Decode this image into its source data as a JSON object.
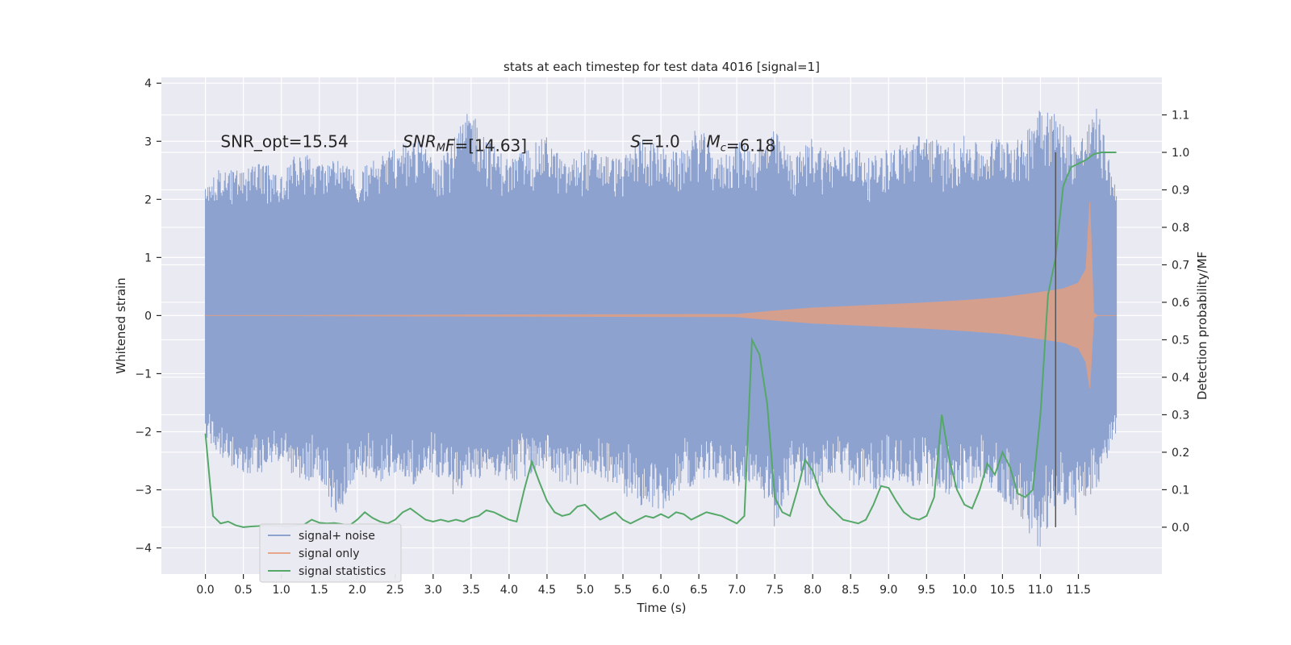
{
  "chart_data": {
    "type": "line",
    "title": "stats at each timestep for test data 4016 [signal=1]",
    "xlabel": "Time (s)",
    "ylabel": "Whitened strain",
    "y2label": "Detection probability/MF",
    "xlim": [
      -0.58,
      12.6
    ],
    "ylim": [
      -4.45,
      4.1
    ],
    "y2lim": [
      -0.125,
      1.2
    ],
    "xticks": [
      0.0,
      0.5,
      1.0,
      1.5,
      2.0,
      2.5,
      3.0,
      3.5,
      4.0,
      4.5,
      5.0,
      5.5,
      6.0,
      6.5,
      7.0,
      7.5,
      8.0,
      8.5,
      9.0,
      9.5,
      10.0,
      10.5,
      11.0,
      11.5
    ],
    "xtick_labels": [
      "0.0",
      "0.5",
      "1.0",
      "1.5",
      "2.0",
      "2.5",
      "3.0",
      "3.5",
      "4.0",
      "4.5",
      "5.0",
      "5.5",
      "6.0",
      "6.5",
      "7.0",
      "7.5",
      "8.0",
      "8.5",
      "9.0",
      "9.5",
      "10.0",
      "10.5",
      "11.0",
      "11.5"
    ],
    "yticks": [
      -4,
      -3,
      -2,
      -1,
      0,
      1,
      2,
      3,
      4
    ],
    "ytick_labels": [
      "−4",
      "−3",
      "−2",
      "−1",
      "0",
      "1",
      "2",
      "3",
      "4"
    ],
    "y2ticks": [
      0.0,
      0.1,
      0.2,
      0.3,
      0.4,
      0.5,
      0.6,
      0.7,
      0.8,
      0.9,
      1.0,
      1.1
    ],
    "y2tick_labels": [
      "0.0",
      "0.1",
      "0.2",
      "0.3",
      "0.4",
      "0.5",
      "0.6",
      "0.7",
      "0.8",
      "0.9",
      "1.0",
      "1.1"
    ],
    "grid": true,
    "legend_position": "lower-left",
    "annotations": [
      {
        "parts": [
          {
            "t": "SNR_opt=15.54",
            "it": false
          }
        ],
        "x": 0.2,
        "y": 3.0
      },
      {
        "parts": [
          {
            "t": "SNR",
            "it": true
          },
          {
            "t": "M",
            "it": true,
            "sub": true
          },
          {
            "t": "F",
            "it": true
          },
          {
            "t": "=[14.63]",
            "it": false
          }
        ],
        "x": 2.6,
        "y": 3.0
      },
      {
        "parts": [
          {
            "t": "S",
            "it": true
          },
          {
            "t": "=1.0",
            "it": false
          }
        ],
        "x": 5.6,
        "y": 3.0
      },
      {
        "parts": [
          {
            "t": "M",
            "it": true
          },
          {
            "t": "c",
            "it": true,
            "sub": true
          },
          {
            "t": "=6.18",
            "it": false
          }
        ],
        "x": 6.6,
        "y": 3.0
      }
    ],
    "vline": {
      "x": 11.2,
      "y2_range": [
        0.0,
        1.0
      ],
      "color": "#555555"
    },
    "series": [
      {
        "name": "signal+ noise",
        "axis": "left",
        "color": "#8da2cf",
        "kind": "envelope",
        "x": [
          0.0,
          0.25,
          0.5,
          0.75,
          1.0,
          1.25,
          1.5,
          1.75,
          2.0,
          2.25,
          2.5,
          2.75,
          3.0,
          3.25,
          3.5,
          3.75,
          4.0,
          4.25,
          4.5,
          4.75,
          5.0,
          5.25,
          5.5,
          5.75,
          6.0,
          6.25,
          6.5,
          6.75,
          7.0,
          7.25,
          7.5,
          7.75,
          8.0,
          8.25,
          8.5,
          8.75,
          9.0,
          9.25,
          9.5,
          9.75,
          10.0,
          10.25,
          10.5,
          10.75,
          11.0,
          11.25,
          11.5,
          11.75,
          12.0
        ],
        "upper": [
          2.3,
          2.6,
          2.5,
          2.7,
          2.4,
          2.9,
          2.6,
          2.8,
          2.5,
          2.7,
          2.9,
          3.1,
          2.8,
          3.0,
          3.6,
          3.0,
          2.7,
          2.9,
          3.1,
          2.6,
          2.9,
          2.8,
          2.7,
          3.1,
          2.9,
          2.8,
          3.3,
          2.7,
          3.0,
          2.9,
          3.2,
          2.7,
          3.1,
          2.8,
          3.0,
          2.7,
          2.9,
          3.0,
          3.2,
          2.9,
          3.1,
          2.9,
          3.2,
          3.0,
          3.8,
          3.4,
          3.0,
          3.6,
          2.2
        ],
        "lower": [
          -2.1,
          -2.5,
          -2.8,
          -2.7,
          -2.5,
          -3.0,
          -2.8,
          -3.6,
          -2.7,
          -2.9,
          -2.8,
          -3.0,
          -2.7,
          -3.1,
          -2.9,
          -2.7,
          -2.9,
          -2.8,
          -2.6,
          -3.0,
          -2.9,
          -2.8,
          -3.1,
          -3.3,
          -3.4,
          -3.0,
          -2.9,
          -2.8,
          -3.0,
          -2.8,
          -3.7,
          -2.9,
          -3.0,
          -2.8,
          -2.9,
          -3.1,
          -2.8,
          -3.0,
          -2.9,
          -3.1,
          -3.0,
          -2.8,
          -3.2,
          -3.5,
          -4.1,
          -3.2,
          -3.5,
          -3.0,
          -2.0
        ]
      },
      {
        "name": "signal only",
        "axis": "left",
        "color": "#dd9f88",
        "kind": "envelope",
        "x": [
          0.0,
          7.0,
          7.5,
          8.0,
          8.5,
          9.0,
          9.5,
          10.0,
          10.5,
          11.0,
          11.3,
          11.5,
          11.6,
          11.65,
          11.7,
          11.75,
          12.0
        ],
        "upper": [
          0.0,
          0.02,
          0.08,
          0.13,
          0.16,
          0.19,
          0.22,
          0.26,
          0.31,
          0.4,
          0.46,
          0.56,
          0.8,
          1.95,
          0.05,
          0.0,
          0.0
        ],
        "lower": [
          0.0,
          -0.02,
          -0.08,
          -0.13,
          -0.16,
          -0.19,
          -0.22,
          -0.26,
          -0.31,
          -0.4,
          -0.46,
          -0.56,
          -0.8,
          -1.25,
          -0.05,
          0.0,
          0.0
        ]
      },
      {
        "name": "signal statistics",
        "axis": "right",
        "color": "#55a868",
        "kind": "line",
        "x": [
          0.0,
          0.1,
          0.2,
          0.3,
          0.4,
          0.5,
          0.6,
          0.7,
          0.8,
          0.9,
          1.0,
          1.1,
          1.2,
          1.3,
          1.4,
          1.5,
          1.6,
          1.7,
          1.8,
          1.9,
          2.0,
          2.1,
          2.2,
          2.3,
          2.4,
          2.5,
          2.6,
          2.7,
          2.8,
          2.9,
          3.0,
          3.1,
          3.2,
          3.3,
          3.4,
          3.5,
          3.6,
          3.7,
          3.8,
          3.9,
          4.0,
          4.1,
          4.2,
          4.3,
          4.4,
          4.5,
          4.6,
          4.7,
          4.8,
          4.9,
          5.0,
          5.1,
          5.2,
          5.3,
          5.4,
          5.5,
          5.6,
          5.7,
          5.8,
          5.9,
          6.0,
          6.1,
          6.2,
          6.3,
          6.4,
          6.5,
          6.6,
          6.7,
          6.8,
          6.9,
          7.0,
          7.1,
          7.2,
          7.3,
          7.4,
          7.5,
          7.6,
          7.7,
          7.8,
          7.9,
          8.0,
          8.1,
          8.2,
          8.3,
          8.4,
          8.5,
          8.6,
          8.7,
          8.8,
          8.9,
          9.0,
          9.1,
          9.2,
          9.3,
          9.4,
          9.5,
          9.6,
          9.7,
          9.8,
          9.9,
          10.0,
          10.1,
          10.2,
          10.3,
          10.4,
          10.5,
          10.6,
          10.7,
          10.8,
          10.9,
          11.0,
          11.1,
          11.2,
          11.3,
          11.4,
          11.5,
          11.6,
          11.7,
          11.8,
          11.9,
          12.0
        ],
        "values": [
          0.25,
          0.03,
          0.01,
          0.015,
          0.005,
          0.0,
          0.002,
          0.003,
          0.005,
          0.004,
          0.003,
          0.002,
          0.005,
          0.007,
          0.02,
          0.012,
          0.01,
          0.011,
          0.008,
          0.005,
          0.02,
          0.04,
          0.025,
          0.015,
          0.01,
          0.02,
          0.04,
          0.05,
          0.035,
          0.02,
          0.015,
          0.02,
          0.015,
          0.02,
          0.015,
          0.025,
          0.03,
          0.045,
          0.04,
          0.03,
          0.02,
          0.015,
          0.1,
          0.175,
          0.12,
          0.07,
          0.04,
          0.03,
          0.035,
          0.055,
          0.06,
          0.04,
          0.02,
          0.03,
          0.04,
          0.02,
          0.01,
          0.02,
          0.03,
          0.025,
          0.035,
          0.025,
          0.04,
          0.035,
          0.02,
          0.03,
          0.04,
          0.035,
          0.03,
          0.02,
          0.01,
          0.03,
          0.5,
          0.46,
          0.33,
          0.08,
          0.04,
          0.03,
          0.1,
          0.18,
          0.15,
          0.09,
          0.06,
          0.04,
          0.02,
          0.015,
          0.01,
          0.02,
          0.06,
          0.11,
          0.105,
          0.07,
          0.04,
          0.025,
          0.02,
          0.03,
          0.08,
          0.3,
          0.18,
          0.1,
          0.06,
          0.05,
          0.1,
          0.17,
          0.14,
          0.2,
          0.16,
          0.09,
          0.08,
          0.1,
          0.3,
          0.62,
          0.72,
          0.91,
          0.96,
          0.97,
          0.98,
          0.995,
          1.0,
          1.0,
          1.0
        ]
      }
    ]
  }
}
